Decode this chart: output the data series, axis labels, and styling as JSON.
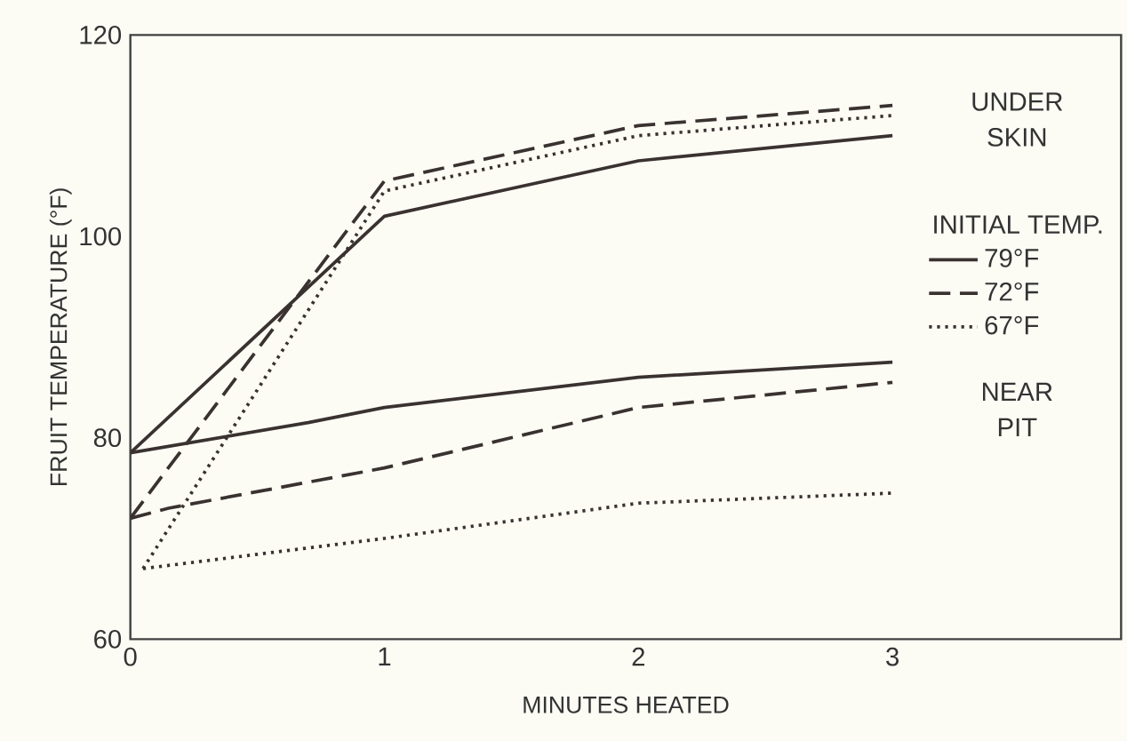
{
  "chart_data": {
    "type": "line",
    "xlabel": "MINUTES HEATED",
    "ylabel": "FRUIT TEMPERATURE (°F)",
    "legend_title": "INITIAL TEMP.",
    "legend": "right",
    "grid": false,
    "marker": "none",
    "xlim": [
      0,
      3.9
    ],
    "ylim": [
      60,
      120
    ],
    "xticks": [
      0,
      1,
      2,
      3
    ],
    "yticks": [
      60,
      80,
      100,
      120
    ],
    "annotations": [
      "UNDER SKIN",
      "NEAR PIT"
    ],
    "series": [
      {
        "name": "79°F",
        "color": "#3a3230",
        "line_style": "solid",
        "x": [
          0,
          1,
          2,
          3
        ],
        "values": [
          78.5,
          102,
          107.5,
          110
        ]
      },
      {
        "name": "72°F",
        "color": "#3a3230",
        "line_style": "dashed",
        "x": [
          0,
          1,
          2,
          3
        ],
        "values": [
          72,
          105.5,
          111,
          113
        ]
      },
      {
        "name": "67°F",
        "color": "#3a3230",
        "line_style": "dotted",
        "x": [
          0.05,
          1,
          2,
          3
        ],
        "values": [
          67,
          104.5,
          110,
          112
        ]
      },
      {
        "color": "#3a3230",
        "line_style": "solid",
        "x": [
          0,
          0.7,
          1,
          2,
          3
        ],
        "values": [
          78.5,
          81.5,
          83,
          86,
          87.5
        ]
      },
      {
        "color": "#3a3230",
        "line_style": "dashed",
        "x": [
          0,
          0.15,
          1,
          2,
          3
        ],
        "values": [
          72,
          73,
          77,
          83,
          85.5
        ]
      },
      {
        "color": "#3a3230",
        "line_style": "dotted",
        "x": [
          0.05,
          1,
          2,
          3
        ],
        "values": [
          67,
          70,
          73.5,
          74.5
        ]
      }
    ]
  }
}
